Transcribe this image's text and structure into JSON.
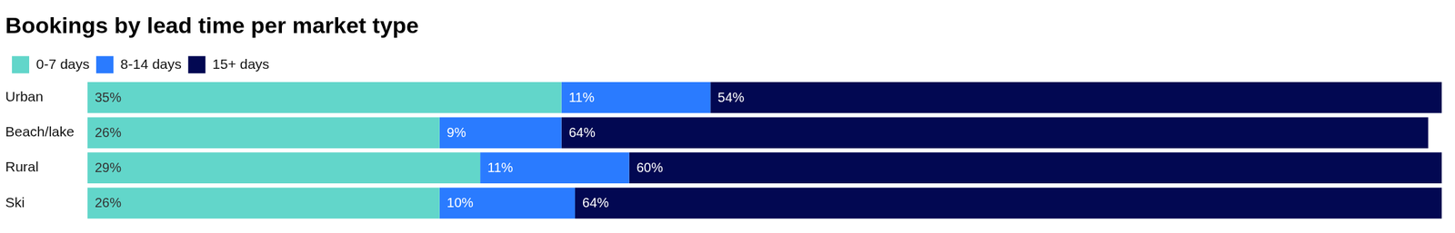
{
  "chart_data": {
    "type": "bar",
    "title": "Bookings by lead time per market type",
    "orientation": "horizontal",
    "stacked": true,
    "data_labels": true,
    "grid": false,
    "legend": "top-left",
    "tick_labels": "y",
    "categories": [
      "Urban",
      "Beach/lake",
      "Rural",
      "Ski"
    ],
    "xlim": [
      0,
      100
    ],
    "series": [
      {
        "name": "0-7 days",
        "color": "#62d6ca",
        "values": [
          35,
          26,
          29,
          26
        ],
        "value_labels": [
          "35%",
          "26%",
          "29%",
          "26%"
        ]
      },
      {
        "name": "8-14 days",
        "color": "#2a7bff",
        "values": [
          11,
          9,
          11,
          10
        ],
        "value_labels": [
          "11%",
          "9%",
          "11%",
          "10%"
        ]
      },
      {
        "name": "15+ days",
        "color": "#020852",
        "values": [
          54,
          64,
          60,
          64
        ],
        "value_labels": [
          "54%",
          "64%",
          "60%",
          "64%"
        ]
      }
    ]
  }
}
